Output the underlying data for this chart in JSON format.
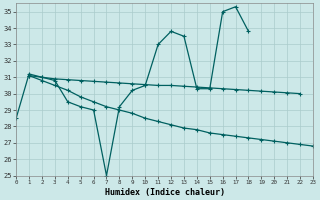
{
  "xlabel": "Humidex (Indice chaleur)",
  "ylabel": "",
  "bg_color": "#cce8e8",
  "grid_color": "#aacccc",
  "line_color": "#006060",
  "xlim": [
    0,
    23
  ],
  "ylim": [
    25,
    35.5
  ],
  "xticks": [
    0,
    1,
    2,
    3,
    4,
    5,
    6,
    7,
    8,
    9,
    10,
    11,
    12,
    13,
    14,
    15,
    16,
    17,
    18,
    19,
    20,
    21,
    22,
    23
  ],
  "yticks": [
    25,
    26,
    27,
    28,
    29,
    30,
    31,
    32,
    33,
    34,
    35
  ],
  "series1_x": [
    0,
    1,
    2,
    3,
    4,
    5,
    6,
    7,
    8,
    9,
    10,
    11,
    12,
    13,
    14,
    15,
    16,
    17,
    18
  ],
  "series1_y": [
    28.5,
    31.2,
    31.0,
    30.8,
    29.5,
    29.2,
    29.0,
    25.0,
    29.2,
    30.2,
    30.5,
    33.0,
    33.8,
    33.5,
    30.3,
    30.3,
    35.0,
    35.3,
    33.8
  ],
  "series2_x": [
    1,
    2,
    3,
    4,
    5,
    6,
    7,
    8,
    9,
    10,
    11,
    12,
    13,
    14,
    15,
    16,
    17,
    18,
    19,
    20,
    21,
    22
  ],
  "series2_y": [
    31.1,
    31.0,
    30.9,
    30.85,
    30.8,
    30.75,
    30.7,
    30.65,
    30.6,
    30.55,
    30.5,
    30.5,
    30.45,
    30.4,
    30.35,
    30.3,
    30.25,
    30.2,
    30.15,
    30.1,
    30.05,
    30.0
  ],
  "series3_x": [
    1,
    2,
    3,
    4,
    5,
    6,
    7,
    8,
    9,
    10,
    11,
    12,
    13,
    14,
    15,
    16,
    17,
    18,
    19,
    20,
    21,
    22,
    23
  ],
  "series3_y": [
    31.1,
    30.8,
    30.5,
    30.2,
    29.8,
    29.5,
    29.2,
    29.0,
    28.8,
    28.5,
    28.3,
    28.1,
    27.9,
    27.8,
    27.6,
    27.5,
    27.4,
    27.3,
    27.2,
    27.1,
    27.0,
    26.9,
    26.8
  ]
}
